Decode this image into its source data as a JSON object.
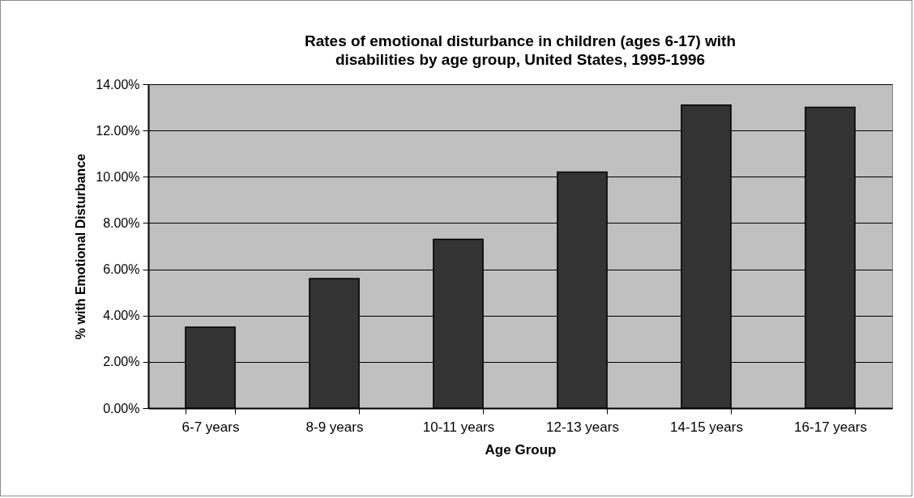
{
  "chart_data": {
    "type": "bar",
    "title": "Rates of emotional disturbance in children (ages 6-17) with disabilities by age group, United States, 1995-1996",
    "xlabel": "Age Group",
    "ylabel": "% with Emotional Disturbance",
    "categories": [
      "6-7 years",
      "8-9 years",
      "10-11 years",
      "12-13 years",
      "14-15 years",
      "16-17 years"
    ],
    "values": [
      3.5,
      5.6,
      7.3,
      10.2,
      13.1,
      13.0
    ],
    "color": "#333333",
    "ylim": [
      0,
      14
    ],
    "yticks": [
      {
        "value": 0,
        "label": "0.00%"
      },
      {
        "value": 2,
        "label": "2.00%"
      },
      {
        "value": 4,
        "label": "4.00%"
      },
      {
        "value": 6,
        "label": "6.00%"
      },
      {
        "value": 8,
        "label": "8.00%"
      },
      {
        "value": 10,
        "label": "10.00%"
      },
      {
        "value": 12,
        "label": "12.00%"
      },
      {
        "value": 14,
        "label": "14.00%"
      }
    ],
    "grid": "y"
  }
}
